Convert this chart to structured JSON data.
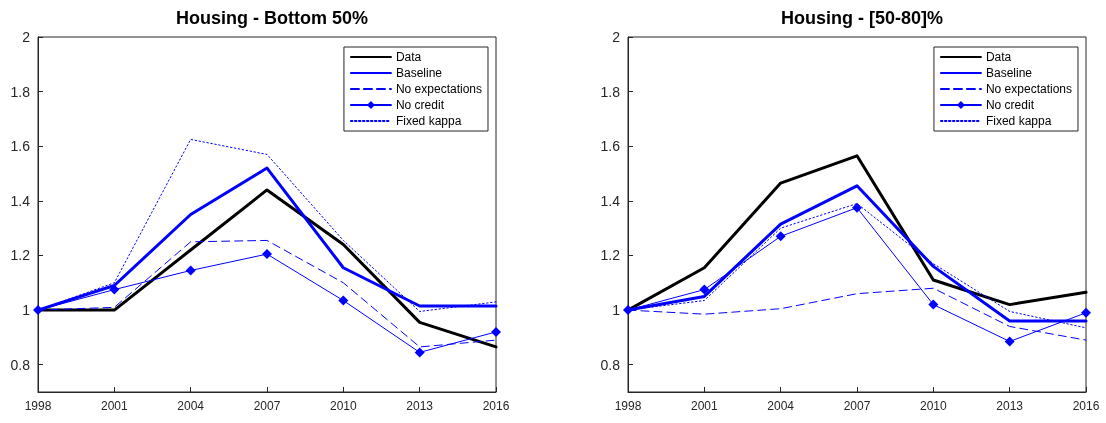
{
  "chart_data": [
    {
      "type": "line",
      "title": "Housing - Bottom 50%",
      "categories": [
        "1998",
        "2001",
        "2004",
        "2007",
        "2010",
        "2013",
        "2016"
      ],
      "ylim": [
        0.7,
        2
      ],
      "yticks": [
        0.8,
        1,
        1.2,
        1.4,
        1.6,
        1.8,
        2
      ],
      "grid": false,
      "legend": "top right",
      "series": [
        {
          "name": "Data",
          "color": "#000000",
          "line_style": "solid",
          "marker": "none",
          "values": [
            1,
            1,
            1.22,
            1.44,
            1.24,
            0.955,
            0.865
          ]
        },
        {
          "name": "Baseline",
          "color": "#0000ff",
          "line_style": "solid",
          "marker": "none",
          "values": [
            1,
            1.09,
            1.35,
            1.52,
            1.155,
            1.015,
            1.015
          ]
        },
        {
          "name": "No expectations",
          "color": "#0000ff",
          "line_style": "dashed",
          "marker": "none",
          "values": [
            1,
            1.01,
            1.25,
            1.255,
            1.1,
            0.865,
            0.89
          ]
        },
        {
          "name": "No credit",
          "color": "#0000ff",
          "line_style": "solid",
          "marker": "diamond",
          "values": [
            1,
            1.075,
            1.145,
            1.205,
            1.035,
            0.845,
            0.92
          ]
        },
        {
          "name": "Fixed kappa",
          "color": "#0000ff",
          "line_style": "dotted",
          "marker": "none",
          "values": [
            1,
            1.1,
            1.625,
            1.57,
            1.255,
            0.995,
            1.03
          ]
        }
      ]
    },
    {
      "type": "line",
      "title": "Housing - [50-80]%",
      "categories": [
        "1998",
        "2001",
        "2004",
        "2007",
        "2010",
        "2013",
        "2016"
      ],
      "ylim": [
        0.7,
        2
      ],
      "yticks": [
        0.8,
        1,
        1.2,
        1.4,
        1.6,
        1.8,
        2
      ],
      "grid": false,
      "legend": "top right",
      "series": [
        {
          "name": "Data",
          "color": "#000000",
          "line_style": "solid",
          "marker": "none",
          "values": [
            1,
            1.155,
            1.465,
            1.565,
            1.11,
            1.02,
            1.065
          ]
        },
        {
          "name": "Baseline",
          "color": "#0000ff",
          "line_style": "solid",
          "marker": "none",
          "values": [
            1,
            1.05,
            1.315,
            1.455,
            1.16,
            0.96,
            0.96
          ]
        },
        {
          "name": "No expectations",
          "color": "#0000ff",
          "line_style": "dashed",
          "marker": "none",
          "values": [
            1,
            0.985,
            1.005,
            1.06,
            1.08,
            0.94,
            0.89
          ]
        },
        {
          "name": "No credit",
          "color": "#0000ff",
          "line_style": "solid",
          "marker": "diamond",
          "values": [
            1,
            1.075,
            1.27,
            1.375,
            1.02,
            0.885,
            0.99
          ]
        },
        {
          "name": "Fixed kappa",
          "color": "#0000ff",
          "line_style": "dotted",
          "marker": "none",
          "values": [
            1,
            1.035,
            1.3,
            1.39,
            1.17,
            0.995,
            0.935
          ]
        }
      ]
    }
  ]
}
